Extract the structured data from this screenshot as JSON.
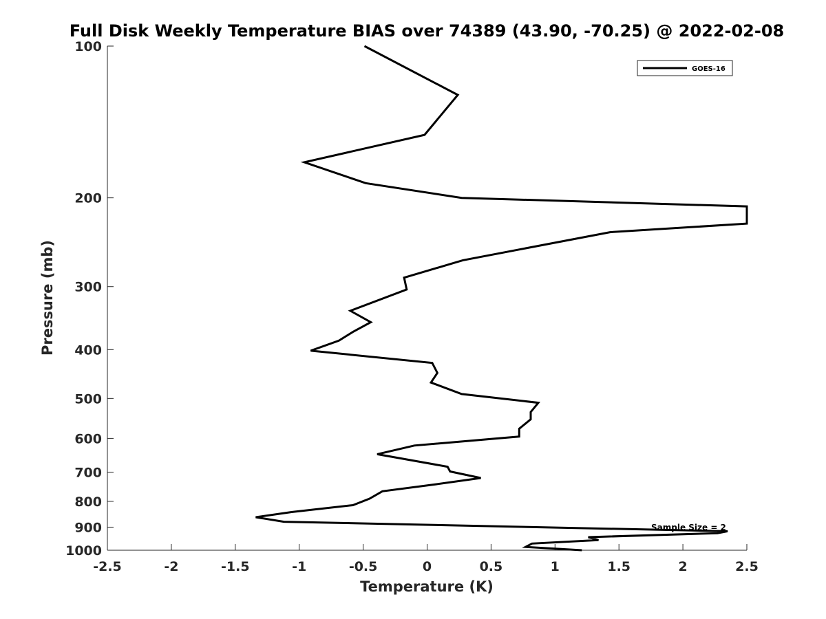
{
  "chart_data": {
    "type": "line",
    "title": "Full Disk Weekly Temperature BIAS over 74389 (43.90, -70.25) @ 2022-02-08",
    "xlabel": "Temperature (K)",
    "ylabel": "Pressure (mb)",
    "xlim": [
      -2.5,
      2.5
    ],
    "ylim": [
      1000,
      100
    ],
    "y_scale": "log",
    "x_ticks": [
      "-2.5",
      "-2",
      "-1.5",
      "-1",
      "-0.5",
      "0",
      "0.5",
      "1",
      "1.5",
      "2",
      "2.5"
    ],
    "y_ticks": [
      "100",
      "200",
      "300",
      "400",
      "500",
      "600",
      "700",
      "800",
      "900",
      "1000"
    ],
    "legend_position": "top-right",
    "grid": false,
    "series": [
      {
        "name": "GOES-16",
        "color": "#000000",
        "points": [
          [
            -0.49,
            100
          ],
          [
            0.24,
            125
          ],
          [
            -0.02,
            150
          ],
          [
            -0.96,
            170
          ],
          [
            -0.48,
            187
          ],
          [
            0.27,
            200
          ],
          [
            2.5,
            208
          ],
          [
            2.5,
            225
          ],
          [
            1.43,
            234
          ],
          [
            0.28,
            266
          ],
          [
            -0.18,
            288
          ],
          [
            -0.16,
            304
          ],
          [
            -0.6,
            335
          ],
          [
            -0.44,
            353
          ],
          [
            -0.58,
            369
          ],
          [
            -0.69,
            384
          ],
          [
            -0.91,
            402
          ],
          [
            0.04,
            425
          ],
          [
            0.08,
            445
          ],
          [
            0.03,
            465
          ],
          [
            0.27,
            490
          ],
          [
            0.87,
            510
          ],
          [
            0.81,
            532
          ],
          [
            0.81,
            550
          ],
          [
            0.72,
            574
          ],
          [
            0.72,
            595
          ],
          [
            -0.1,
            620
          ],
          [
            -0.39,
            645
          ],
          [
            0.16,
            683
          ],
          [
            0.18,
            698
          ],
          [
            0.42,
            719
          ],
          [
            0.07,
            740
          ],
          [
            -0.35,
            764
          ],
          [
            -0.45,
            790
          ],
          [
            -0.58,
            814
          ],
          [
            -1.06,
            840
          ],
          [
            -1.34,
            860
          ],
          [
            -1.12,
            878
          ],
          [
            2.35,
            917
          ],
          [
            2.27,
            925
          ],
          [
            1.26,
            942
          ],
          [
            1.34,
            955
          ],
          [
            0.82,
            970
          ],
          [
            0.77,
            985
          ],
          [
            1.21,
            1000
          ]
        ]
      }
    ],
    "annotations": [
      "Sample Size = 2"
    ]
  }
}
